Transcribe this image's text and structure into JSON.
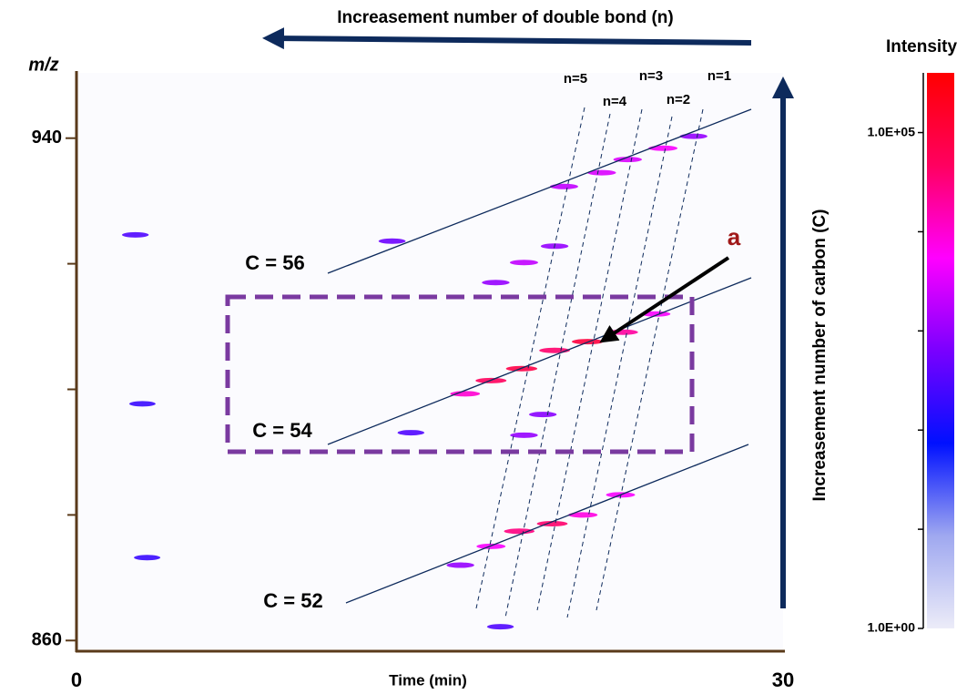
{
  "chart_data": {
    "type": "heatmap",
    "title": "Increasement number of double bond (n)",
    "x_label": "Time (min)",
    "y_label": "m/z",
    "y2_label": "Increasement number of carbon (C)",
    "xlim": [
      0,
      30
    ],
    "xticks": [
      0,
      30
    ],
    "ylim": [
      858.3,
      950.4
    ],
    "yticks": [
      860,
      940
    ],
    "minor_yticks": [
      880,
      900,
      920
    ],
    "colorbar": {
      "title": "Intensity",
      "log": true,
      "clim": [
        1,
        400000
      ],
      "ticks": [
        {
          "value": 1,
          "label": "1.0E+00"
        },
        {
          "value": 100000,
          "label": "1.0E+05"
        }
      ],
      "minor_ticks": [
        10,
        100,
        1000,
        10000
      ],
      "colormap": [
        "#ececf8",
        "#9fa8f0",
        "#0010ff",
        "#7a00ff",
        "#ff00ff",
        "#ff0060",
        "#ff0000"
      ]
    },
    "x": [
      17.6,
      18.9,
      20.3,
      21.7,
      23.2,
      24.6,
      16.5,
      18.8,
      20.2,
      21.5,
      23.1,
      17.6,
      16.3,
      20.7,
      22.3,
      23.4,
      24.9,
      26.2,
      19.0,
      20.3,
      17.8,
      13.4,
      2.5,
      2.8,
      19.0,
      19.8,
      14.2,
      18.0,
      3.0
    ],
    "y": [
      901.4,
      903.3,
      906.2,
      907.6,
      909.1,
      912.0,
      899.3,
      877.4,
      878.6,
      880.0,
      883.2,
      875.0,
      872.0,
      932.3,
      934.5,
      936.6,
      938.4,
      940.3,
      920.2,
      922.8,
      917.0,
      923.6,
      924.6,
      897.7,
      892.7,
      896.0,
      893.1,
      862.2,
      873.2
    ],
    "values": [
      50000,
      80000,
      40000,
      100000,
      20000,
      5000,
      10000,
      30000,
      40000,
      8000,
      5000,
      5000,
      1000,
      2000,
      3000,
      3000,
      5000,
      1000,
      2000,
      1000,
      1000,
      500,
      300,
      200,
      1000,
      800,
      300,
      300,
      200
    ],
    "annotations": {
      "carbon": [
        "C = 56",
        "C = 54",
        "C = 52"
      ],
      "bonds": [
        "n=5",
        "n=4",
        "n=3",
        "n=2",
        "n=1"
      ],
      "marker": "a"
    }
  }
}
